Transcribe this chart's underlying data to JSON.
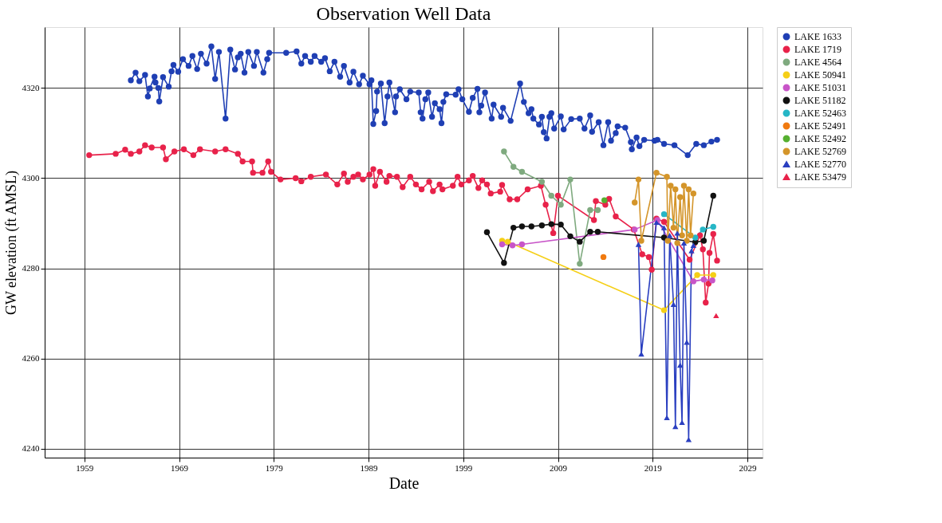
{
  "chart_data": {
    "type": "line",
    "title": "Observation Well Data",
    "xlabel": "Date",
    "ylabel": "GW elevation (ft AMSL)",
    "xlim": [
      1954.8,
      2030.6
    ],
    "xticks": [
      1959,
      1969,
      1979,
      1989,
      1999,
      2009,
      2019,
      2029
    ],
    "ylim": [
      4238,
      4333.5
    ],
    "yticks": [
      4240,
      4260,
      4280,
      4300,
      4320
    ],
    "grid": true,
    "legend": "top right",
    "marker": "circle",
    "line_style": "solid",
    "series": [
      {
        "name": "LAKE 1633",
        "color": "#1f3fb4",
        "x": [
          1963.9,
          1964.4,
          1964.8,
          1965.4,
          1965.7,
          1965.9,
          1966.4,
          1966.5,
          1966.8,
          1966.9,
          1967.3,
          1967.9,
          1968.2,
          1968.4,
          1968.9,
          1969.4,
          1970.0,
          1970.4,
          1970.9,
          1971.3,
          1971.9,
          1972.4,
          1972.8,
          1973.2,
          1973.9,
          1974.4,
          1974.9,
          1975.2,
          1975.5,
          1975.9,
          1976.3,
          1976.9,
          1977.2,
          1977.9,
          1978.3,
          1978.5,
          1980.3,
          1981.4,
          1981.9,
          1982.3,
          1982.9,
          1983.3,
          1984.0,
          1984.4,
          1984.9,
          1985.4,
          1986.0,
          1986.4,
          1987.0,
          1987.4,
          1988.0,
          1988.4,
          1989.1,
          1989.3,
          1989.5,
          1989.8,
          1989.9,
          1990.3,
          1990.7,
          1991.0,
          1991.2,
          1991.8,
          1991.9,
          1992.3,
          1993.0,
          1993.4,
          1994.3,
          1994.5,
          1994.7,
          1995.0,
          1995.3,
          1995.7,
          1996.0,
          1996.5,
          1996.7,
          1996.9,
          1997.2,
          1998.2,
          1998.5,
          1998.9,
          1999.6,
          2000.0,
          2000.5,
          2000.7,
          2000.9,
          2001.3,
          2002.0,
          2002.2,
          2003.0,
          2003.2,
          2004.0,
          2005.0,
          2005.4,
          2005.9,
          2006.2,
          2006.4,
          2007.0,
          2007.3,
          2007.5,
          2007.8,
          2008.1,
          2008.3,
          2008.6,
          2009.3,
          2009.6,
          2010.4,
          2011.3,
          2011.8,
          2012.4,
          2012.6,
          2013.3,
          2013.8,
          2014.3,
          2014.6,
          2015.1,
          2015.3,
          2016.1,
          2016.7,
          2016.8,
          2017.3,
          2017.6,
          2018.1,
          2019.2,
          2019.5,
          2020.2,
          2021.3,
          2022.7,
          2023.6,
          2024.4,
          2025.2,
          2025.8
        ],
        "values": [
          4321.7,
          4323.4,
          4321.5,
          4322.9,
          4318.1,
          4319.9,
          4322.5,
          4321.2,
          4320.0,
          4317.0,
          4322.4,
          4320.3,
          4323.7,
          4325.1,
          4323.6,
          4326.4,
          4324.9,
          4327.1,
          4324.2,
          4327.6,
          4325.4,
          4329.2,
          4322.0,
          4328.0,
          4313.2,
          4328.5,
          4324.1,
          4326.8,
          4327.6,
          4323.4,
          4328.0,
          4324.9,
          4328.0,
          4323.4,
          4326.4,
          4327.8,
          4327.8,
          4328.1,
          4325.4,
          4327.1,
          4325.8,
          4327.1,
          4325.8,
          4326.6,
          4323.7,
          4325.8,
          4322.5,
          4324.9,
          4321.2,
          4323.6,
          4320.8,
          4322.7,
          4320.8,
          4321.7,
          4312.0,
          4314.9,
          4319.2,
          4321.0,
          4312.2,
          4318.1,
          4321.2,
          4314.6,
          4318.1,
          4319.7,
          4317.5,
          4319.2,
          4319.0,
          4314.6,
          4313.2,
          4317.5,
          4319.0,
          4313.6,
          4316.6,
          4315.3,
          4312.2,
          4316.9,
          4318.6,
          4318.5,
          4319.7,
          4317.5,
          4314.7,
          4317.8,
          4319.8,
          4314.6,
          4316.1,
          4319.0,
          4313.2,
          4316.3,
          4313.6,
          4315.6,
          4312.7,
          4321.0,
          4316.9,
          4314.4,
          4315.3,
          4313.2,
          4311.9,
          4313.6,
          4310.2,
          4308.8,
          4313.6,
          4314.4,
          4311.0,
          4313.7,
          4310.8,
          4313.1,
          4313.2,
          4311.0,
          4313.9,
          4310.3,
          4312.4,
          4307.3,
          4312.4,
          4308.3,
          4310.0,
          4311.5,
          4311.2,
          4308.0,
          4306.4,
          4309.0,
          4307.1,
          4308.5,
          4308.3,
          4308.5,
          4307.6,
          4307.3,
          4305.1,
          4307.6,
          4307.3,
          4308.1,
          4308.5
        ]
      },
      {
        "name": "LAKE 1719",
        "color": "#e8224a",
        "x": [
          1959.5,
          1962.3,
          1963.3,
          1963.9,
          1964.8,
          1965.4,
          1966.1,
          1967.3,
          1967.6,
          1968.5,
          1969.5,
          1970.5,
          1971.2,
          1972.8,
          1973.9,
          1975.2,
          1975.7,
          1976.7,
          1976.8,
          1977.8,
          1978.4,
          1978.7,
          1979.7,
          1981.3,
          1981.9,
          1982.9,
          1984.5,
          1985.7,
          1986.4,
          1986.8,
          1987.4,
          1987.9,
          1988.4,
          1989.1,
          1989.5,
          1989.7,
          1990.2,
          1990.9,
          1991.2,
          1992.0,
          1992.6,
          1993.4,
          1994.0,
          1994.6,
          1995.4,
          1995.8,
          1996.5,
          1996.8,
          1997.9,
          1998.4,
          1998.8,
          1999.6,
          2000.0,
          2000.6,
          2001.0,
          2001.5,
          2001.9,
          2002.9,
          2003.1,
          2003.9,
          2004.7,
          2005.8,
          2007.2,
          2007.7,
          2008.5,
          2009.0,
          2012.8,
          2013.0,
          2014.0,
          2014.4,
          2015.1,
          2017.0,
          2017.9,
          2018.6,
          2018.9,
          2019.4,
          2020.2,
          2022.9,
          2024.0,
          2024.3,
          2024.6,
          2024.9,
          2025.0,
          2025.4,
          2025.8
        ],
        "values": [
          4305.1,
          4305.4,
          4306.3,
          4305.4,
          4305.9,
          4307.3,
          4306.8,
          4306.8,
          4304.2,
          4305.9,
          4306.4,
          4305.1,
          4306.4,
          4305.9,
          4306.4,
          4305.4,
          4303.7,
          4303.7,
          4301.2,
          4301.2,
          4303.7,
          4301.4,
          4299.7,
          4300.0,
          4299.3,
          4300.3,
          4300.8,
          4298.6,
          4301.0,
          4299.2,
          4300.3,
          4300.8,
          4299.7,
          4300.8,
          4302.0,
          4298.3,
          4301.4,
          4299.2,
          4300.5,
          4300.3,
          4298.0,
          4300.3,
          4298.6,
          4297.5,
          4299.2,
          4297.1,
          4298.6,
          4297.5,
          4298.3,
          4300.3,
          4298.6,
          4299.5,
          4300.5,
          4297.8,
          4299.5,
          4298.6,
          4296.6,
          4297.0,
          4298.5,
          4295.3,
          4295.3,
          4297.5,
          4298.3,
          4294.1,
          4287.8,
          4296.1,
          4290.7,
          4294.9,
          4294.1,
          4295.4,
          4291.5,
          4288.6,
          4283.1,
          4282.5,
          4279.7,
          4291.0,
          4290.3,
          4281.9,
          4287.3,
          4284.2,
          4272.4,
          4276.6,
          4283.4,
          4287.6,
          4281.7
        ]
      },
      {
        "name": "LAKE 4564",
        "color": "#7faa7f",
        "x": [
          2003.3,
          2004.3,
          2005.2,
          2007.3,
          2008.3,
          2009.3,
          2010.3,
          2011.3,
          2012.4,
          2013.2
        ],
        "values": [
          4305.9,
          4302.5,
          4301.4,
          4299.2,
          4296.1,
          4294.1,
          4299.7,
          4281.0,
          4292.9,
          4292.9
        ]
      },
      {
        "name": "LAKE 50941",
        "color": "#f5cf17",
        "x": [
          2003.1,
          2003.7,
          2020.2,
          2023.7,
          2025.4
        ],
        "values": [
          4286.1,
          4285.9,
          4270.7,
          4278.5,
          4278.5
        ]
      },
      {
        "name": "LAKE 51031",
        "color": "#c855c8",
        "x": [
          2003.1,
          2004.2,
          2005.2,
          2017.1,
          2019.5,
          2023.3,
          2024.4,
          2025.3
        ],
        "values": [
          4285.3,
          4285.1,
          4285.3,
          4288.6,
          4290.7,
          4277.1,
          4277.5,
          4277.3
        ]
      },
      {
        "name": "LAKE 51182",
        "color": "#111111",
        "x": [
          2001.5,
          2003.3,
          2004.3,
          2005.2,
          2006.2,
          2007.3,
          2008.3,
          2009.3,
          2010.3,
          2011.3,
          2012.4,
          2013.2,
          2020.2,
          2023.5,
          2024.4,
          2025.4
        ],
        "values": [
          4288.0,
          4281.2,
          4289.0,
          4289.3,
          4289.3,
          4289.5,
          4289.8,
          4289.7,
          4287.1,
          4285.9,
          4288.1,
          4288.1,
          4286.8,
          4285.8,
          4286.1,
          4296.1
        ]
      },
      {
        "name": "LAKE 52463",
        "color": "#26b6c6",
        "x": [
          2020.2,
          2023.5,
          2024.3,
          2025.4
        ],
        "values": [
          4292.0,
          4286.8,
          4288.6,
          4289.2
        ]
      },
      {
        "name": "LAKE 52491",
        "color": "#f07a10",
        "x": [
          2013.8
        ],
        "values": [
          4282.5
        ]
      },
      {
        "name": "LAKE 52492",
        "color": "#56b030",
        "x": [
          2013.9
        ],
        "values": [
          4295.1
        ]
      },
      {
        "name": "LAKE 52769",
        "color": "#d4952a",
        "x": [
          2017.1,
          2017.5,
          2017.8,
          2019.4,
          2020.5,
          2020.6,
          2020.9,
          2021.2,
          2021.4,
          2021.6,
          2021.9,
          2022.1,
          2022.3,
          2022.6,
          2022.8,
          2023.0,
          2023.3
        ],
        "values": [
          4294.6,
          4299.7,
          4286.1,
          4301.2,
          4300.3,
          4286.1,
          4298.3,
          4289.0,
          4297.5,
          4285.6,
          4295.8,
          4287.3,
          4298.3,
          4286.1,
          4297.5,
          4287.3,
          4296.6
        ]
      },
      {
        "name": "LAKE 52770",
        "color": "#2a3fc0",
        "marker": "triangle",
        "x": [
          2017.5,
          2017.8,
          2019.4,
          2020.2,
          2020.5,
          2020.8,
          2021.2,
          2021.4,
          2021.6,
          2021.9,
          2022.1,
          2022.3,
          2022.6,
          2022.8,
          2023.1,
          2023.3
        ],
        "values": [
          4285.3,
          4261.0,
          4290.2,
          4289.0,
          4246.9,
          4287.3,
          4272.0,
          4244.9,
          4287.8,
          4258.5,
          4245.8,
          4285.6,
          4263.6,
          4242.0,
          4283.9,
          4285.1
        ]
      },
      {
        "name": "LAKE 53479",
        "color": "#e8224a",
        "marker": "triangle",
        "x": [
          2025.7
        ],
        "values": [
          4269.5
        ]
      }
    ]
  }
}
